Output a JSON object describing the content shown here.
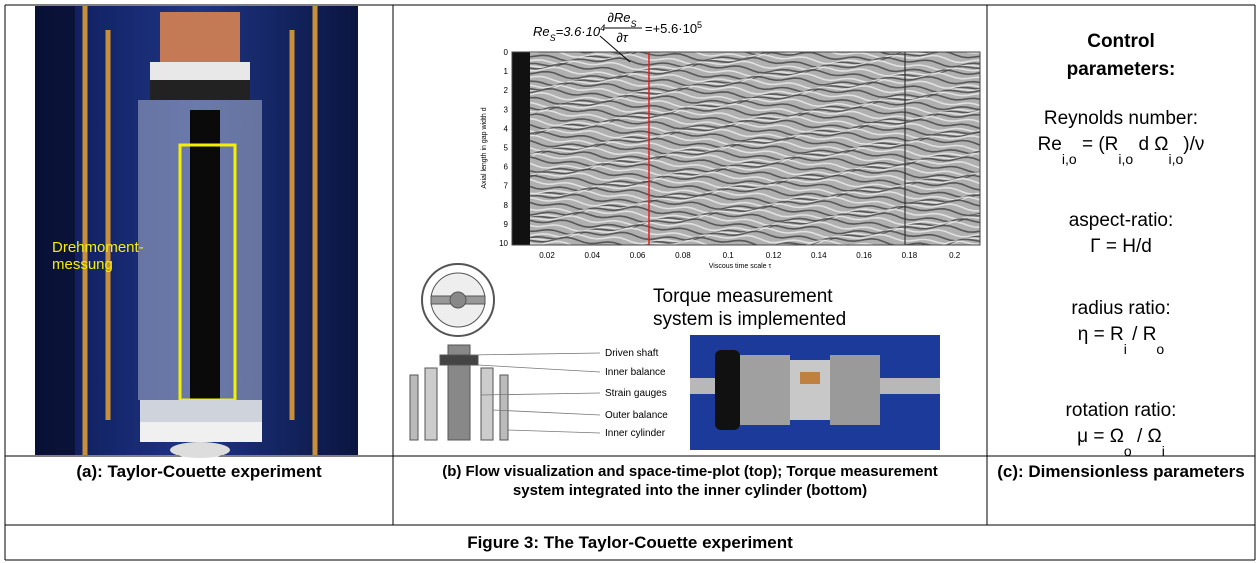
{
  "panel_a": {
    "image_label": [
      "Drehmoment-",
      "messung"
    ]
  },
  "panel_b": {
    "annotation_re": [
      "Re",
      {
        "sub": "S"
      },
      "=3.6·10",
      {
        "sup": "4"
      }
    ],
    "annotation_derivative": {
      "numerator": [
        "∂Re",
        {
          "sub": "S"
        }
      ],
      "denominator": [
        "∂τ"
      ],
      "rhs": [
        "=+5.6·10",
        {
          "sup": "5"
        }
      ]
    },
    "y_axis_label": "Axial length in gap width d",
    "x_axis_label": "Viscous time scale τ",
    "yticks": [
      "0",
      "1",
      "2",
      "3",
      "4",
      "5",
      "6",
      "7",
      "8",
      "9",
      "10"
    ],
    "xticks": [
      "0.02",
      "0.04",
      "0.06",
      "0.08",
      "0.1",
      "0.12",
      "0.14",
      "0.16",
      "0.18",
      "0.2"
    ],
    "torque_text": [
      "Torque measurement",
      "system is implemented"
    ],
    "diagram_labels": [
      "Driven shaft",
      "Inner balance",
      "Strain gauges",
      "Outer balance",
      "Inner cylinder"
    ]
  },
  "panel_c": {
    "title": "Control parameters:",
    "items": [
      {
        "label": "Reynolds number:",
        "formula": [
          "Re",
          {
            "sub": "i,o"
          },
          " = (R",
          {
            "sub": "i,o"
          },
          " d Ω",
          {
            "sub": "i,o"
          },
          ")/ν"
        ]
      },
      {
        "label": "aspect-ratio:",
        "formula": [
          "Γ = H/d"
        ]
      },
      {
        "label": "radius ratio:",
        "formula": [
          "η = R",
          {
            "sub": "i"
          },
          " / R",
          {
            "sub": "o"
          }
        ]
      },
      {
        "label": "rotation ratio:",
        "formula": [
          "μ = Ω",
          {
            "sub": "o"
          },
          " / Ω",
          {
            "sub": "i"
          }
        ]
      }
    ]
  },
  "captions": {
    "a": "(a): Taylor-Couette experiment",
    "b": "(b) Flow visualization and space-time-plot (top); Torque measurement system integrated into the inner cylinder (bottom)",
    "c": "(c): Dimensionless parameters"
  },
  "title": "Figure 3: The Taylor-Couette experiment"
}
